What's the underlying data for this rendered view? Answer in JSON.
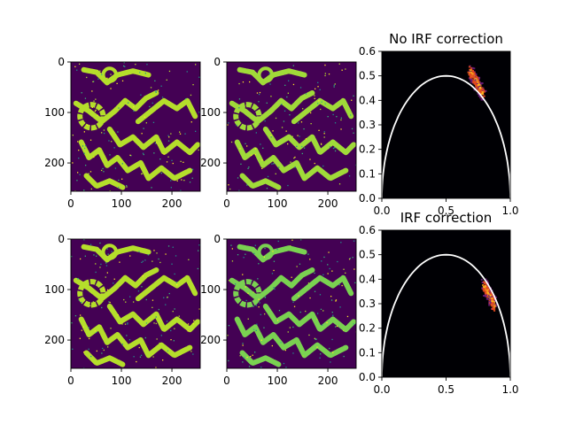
{
  "figure": {
    "background": "#ffffff",
    "image_colors": {
      "background": "#440154",
      "tissue_main": "#b5de2b",
      "tissue_alt": "#7ad151",
      "tissue_mix": "#a0da39",
      "speckle_a": "#fde725",
      "speckle_b": "#35b779",
      "speckle_c": "#21918c"
    },
    "phasor_colors": {
      "background": "#000004",
      "density_low": "#6b1c7a",
      "density_mid": "#e1491f",
      "density_high": "#fcb61e",
      "semicircle": "#ffffff"
    }
  },
  "chart_data": [
    {
      "type": "heatmap",
      "panel": "top-left",
      "content": "intensity/lifetime image with serpentine tissue pattern",
      "xlim": [
        0,
        256
      ],
      "ylim": [
        256,
        0
      ],
      "x_ticks": [
        0,
        100,
        200
      ],
      "y_ticks": [
        0,
        100,
        200
      ],
      "x_tick_labels": [
        "0",
        "100",
        "200"
      ],
      "y_tick_labels": [
        "0",
        "100",
        "200"
      ],
      "colormap": "viridis",
      "dominant_tissue_color": "#b5de2b"
    },
    {
      "type": "heatmap",
      "panel": "top-middle",
      "content": "lifetime image with serpentine tissue pattern",
      "xlim": [
        0,
        256
      ],
      "ylim": [
        256,
        0
      ],
      "x_ticks": [
        0,
        100,
        200
      ],
      "y_ticks": [
        0,
        100,
        200
      ],
      "x_tick_labels": [
        "0",
        "100",
        "200"
      ],
      "y_tick_labels": [
        "0",
        "100",
        "200"
      ],
      "colormap": "viridis",
      "dominant_tissue_color": "#a0da39"
    },
    {
      "type": "heatmap",
      "panel": "top-right",
      "title": "No IRF correction",
      "content": "phasor 2D histogram with universal semicircle",
      "xlim": [
        0.0,
        1.0
      ],
      "ylim": [
        0.0,
        0.6
      ],
      "x_ticks": [
        0.0,
        0.5,
        1.0
      ],
      "y_ticks": [
        0.0,
        0.1,
        0.2,
        0.3,
        0.4,
        0.5,
        0.6
      ],
      "x_tick_labels": [
        "0.0",
        "0.5",
        "1.0"
      ],
      "y_tick_labels": [
        "0.0",
        "0.1",
        "0.2",
        "0.3",
        "0.4",
        "0.5",
        "0.6"
      ],
      "semicircle": {
        "center": [
          0.5,
          0.0
        ],
        "radius": 0.5
      },
      "cluster": {
        "points": [
          [
            0.68,
            0.52
          ],
          [
            0.72,
            0.49
          ],
          [
            0.75,
            0.46
          ],
          [
            0.78,
            0.43
          ]
        ],
        "peak": [
          0.73,
          0.48
        ],
        "spread": 0.03
      }
    },
    {
      "type": "heatmap",
      "panel": "bottom-left",
      "content": "intensity/lifetime image with serpentine tissue pattern",
      "xlim": [
        0,
        256
      ],
      "ylim": [
        256,
        0
      ],
      "x_ticks": [
        0,
        100,
        200
      ],
      "y_ticks": [
        0,
        100,
        200
      ],
      "x_tick_labels": [
        "0",
        "100",
        "200"
      ],
      "y_tick_labels": [
        "0",
        "100",
        "200"
      ],
      "colormap": "viridis",
      "dominant_tissue_color": "#b5de2b"
    },
    {
      "type": "heatmap",
      "panel": "bottom-middle",
      "content": "lifetime image with serpentine tissue pattern",
      "xlim": [
        0,
        256
      ],
      "ylim": [
        256,
        0
      ],
      "x_ticks": [
        0,
        100,
        200
      ],
      "y_ticks": [
        0,
        100,
        200
      ],
      "x_tick_labels": [
        "0",
        "100",
        "200"
      ],
      "y_tick_labels": [
        "0",
        "100",
        "200"
      ],
      "colormap": "viridis",
      "dominant_tissue_color": "#7ad151"
    },
    {
      "type": "heatmap",
      "panel": "bottom-right",
      "title": "IRF correction",
      "content": "phasor 2D histogram with universal semicircle",
      "xlim": [
        0.0,
        1.0
      ],
      "ylim": [
        0.0,
        0.6
      ],
      "x_ticks": [
        0.0,
        0.5,
        1.0
      ],
      "y_ticks": [
        0.0,
        0.1,
        0.2,
        0.3,
        0.4,
        0.5,
        0.6
      ],
      "x_tick_labels": [
        "0.0",
        "0.5",
        "1.0"
      ],
      "y_tick_labels": [
        "0.0",
        "0.1",
        "0.2",
        "0.3",
        "0.4",
        "0.5",
        "0.6"
      ],
      "semicircle": {
        "center": [
          0.5,
          0.0
        ],
        "radius": 0.5
      },
      "cluster": {
        "points": [
          [
            0.79,
            0.38
          ],
          [
            0.82,
            0.35
          ],
          [
            0.85,
            0.32
          ],
          [
            0.87,
            0.29
          ]
        ],
        "peak": [
          0.84,
          0.34
        ],
        "spread": 0.03
      }
    }
  ]
}
